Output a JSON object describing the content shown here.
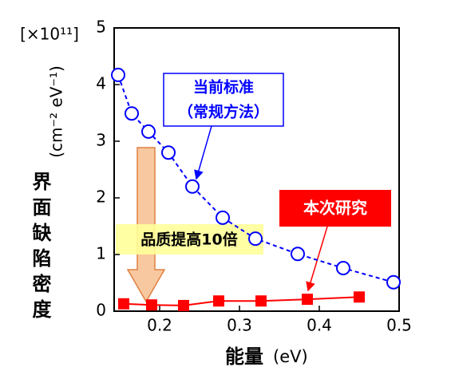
{
  "chart_data": {
    "type": "line",
    "y_unit": "[×10¹¹]",
    "y_label": "界面缺陷密度",
    "y_label_unit": "(cm⁻² eV⁻¹)",
    "x_label": "能量",
    "x_label_unit": "(eV)",
    "xlim": [
      0.143,
      0.5
    ],
    "xticks": [
      0.2,
      0.3,
      0.4,
      0.5
    ],
    "ylim": [
      0,
      5
    ],
    "yticks": [
      0,
      1,
      2,
      3,
      4,
      5
    ],
    "series": [
      {
        "color": "#0000ff",
        "marker": "circle",
        "dashed": true,
        "x": [
          0.148,
          0.165,
          0.186,
          0.211,
          0.241,
          0.279,
          0.32,
          0.373,
          0.43,
          0.493
        ],
        "values": [
          4.17,
          3.49,
          3.17,
          2.8,
          2.2,
          1.65,
          1.28,
          1.01,
          0.76,
          0.51
        ]
      },
      {
        "color": "#ff0000",
        "marker": "square",
        "dashed": false,
        "x": [
          0.155,
          0.19,
          0.23,
          0.274,
          0.327,
          0.385,
          0.45
        ],
        "values": [
          0.13,
          0.11,
          0.1,
          0.18,
          0.18,
          0.21,
          0.25
        ]
      }
    ],
    "annotations": {
      "standard": "当前标准",
      "standard_sub": "（常规方法）",
      "this_study": "本次研究",
      "improvement": "品质提高10倍"
    }
  }
}
